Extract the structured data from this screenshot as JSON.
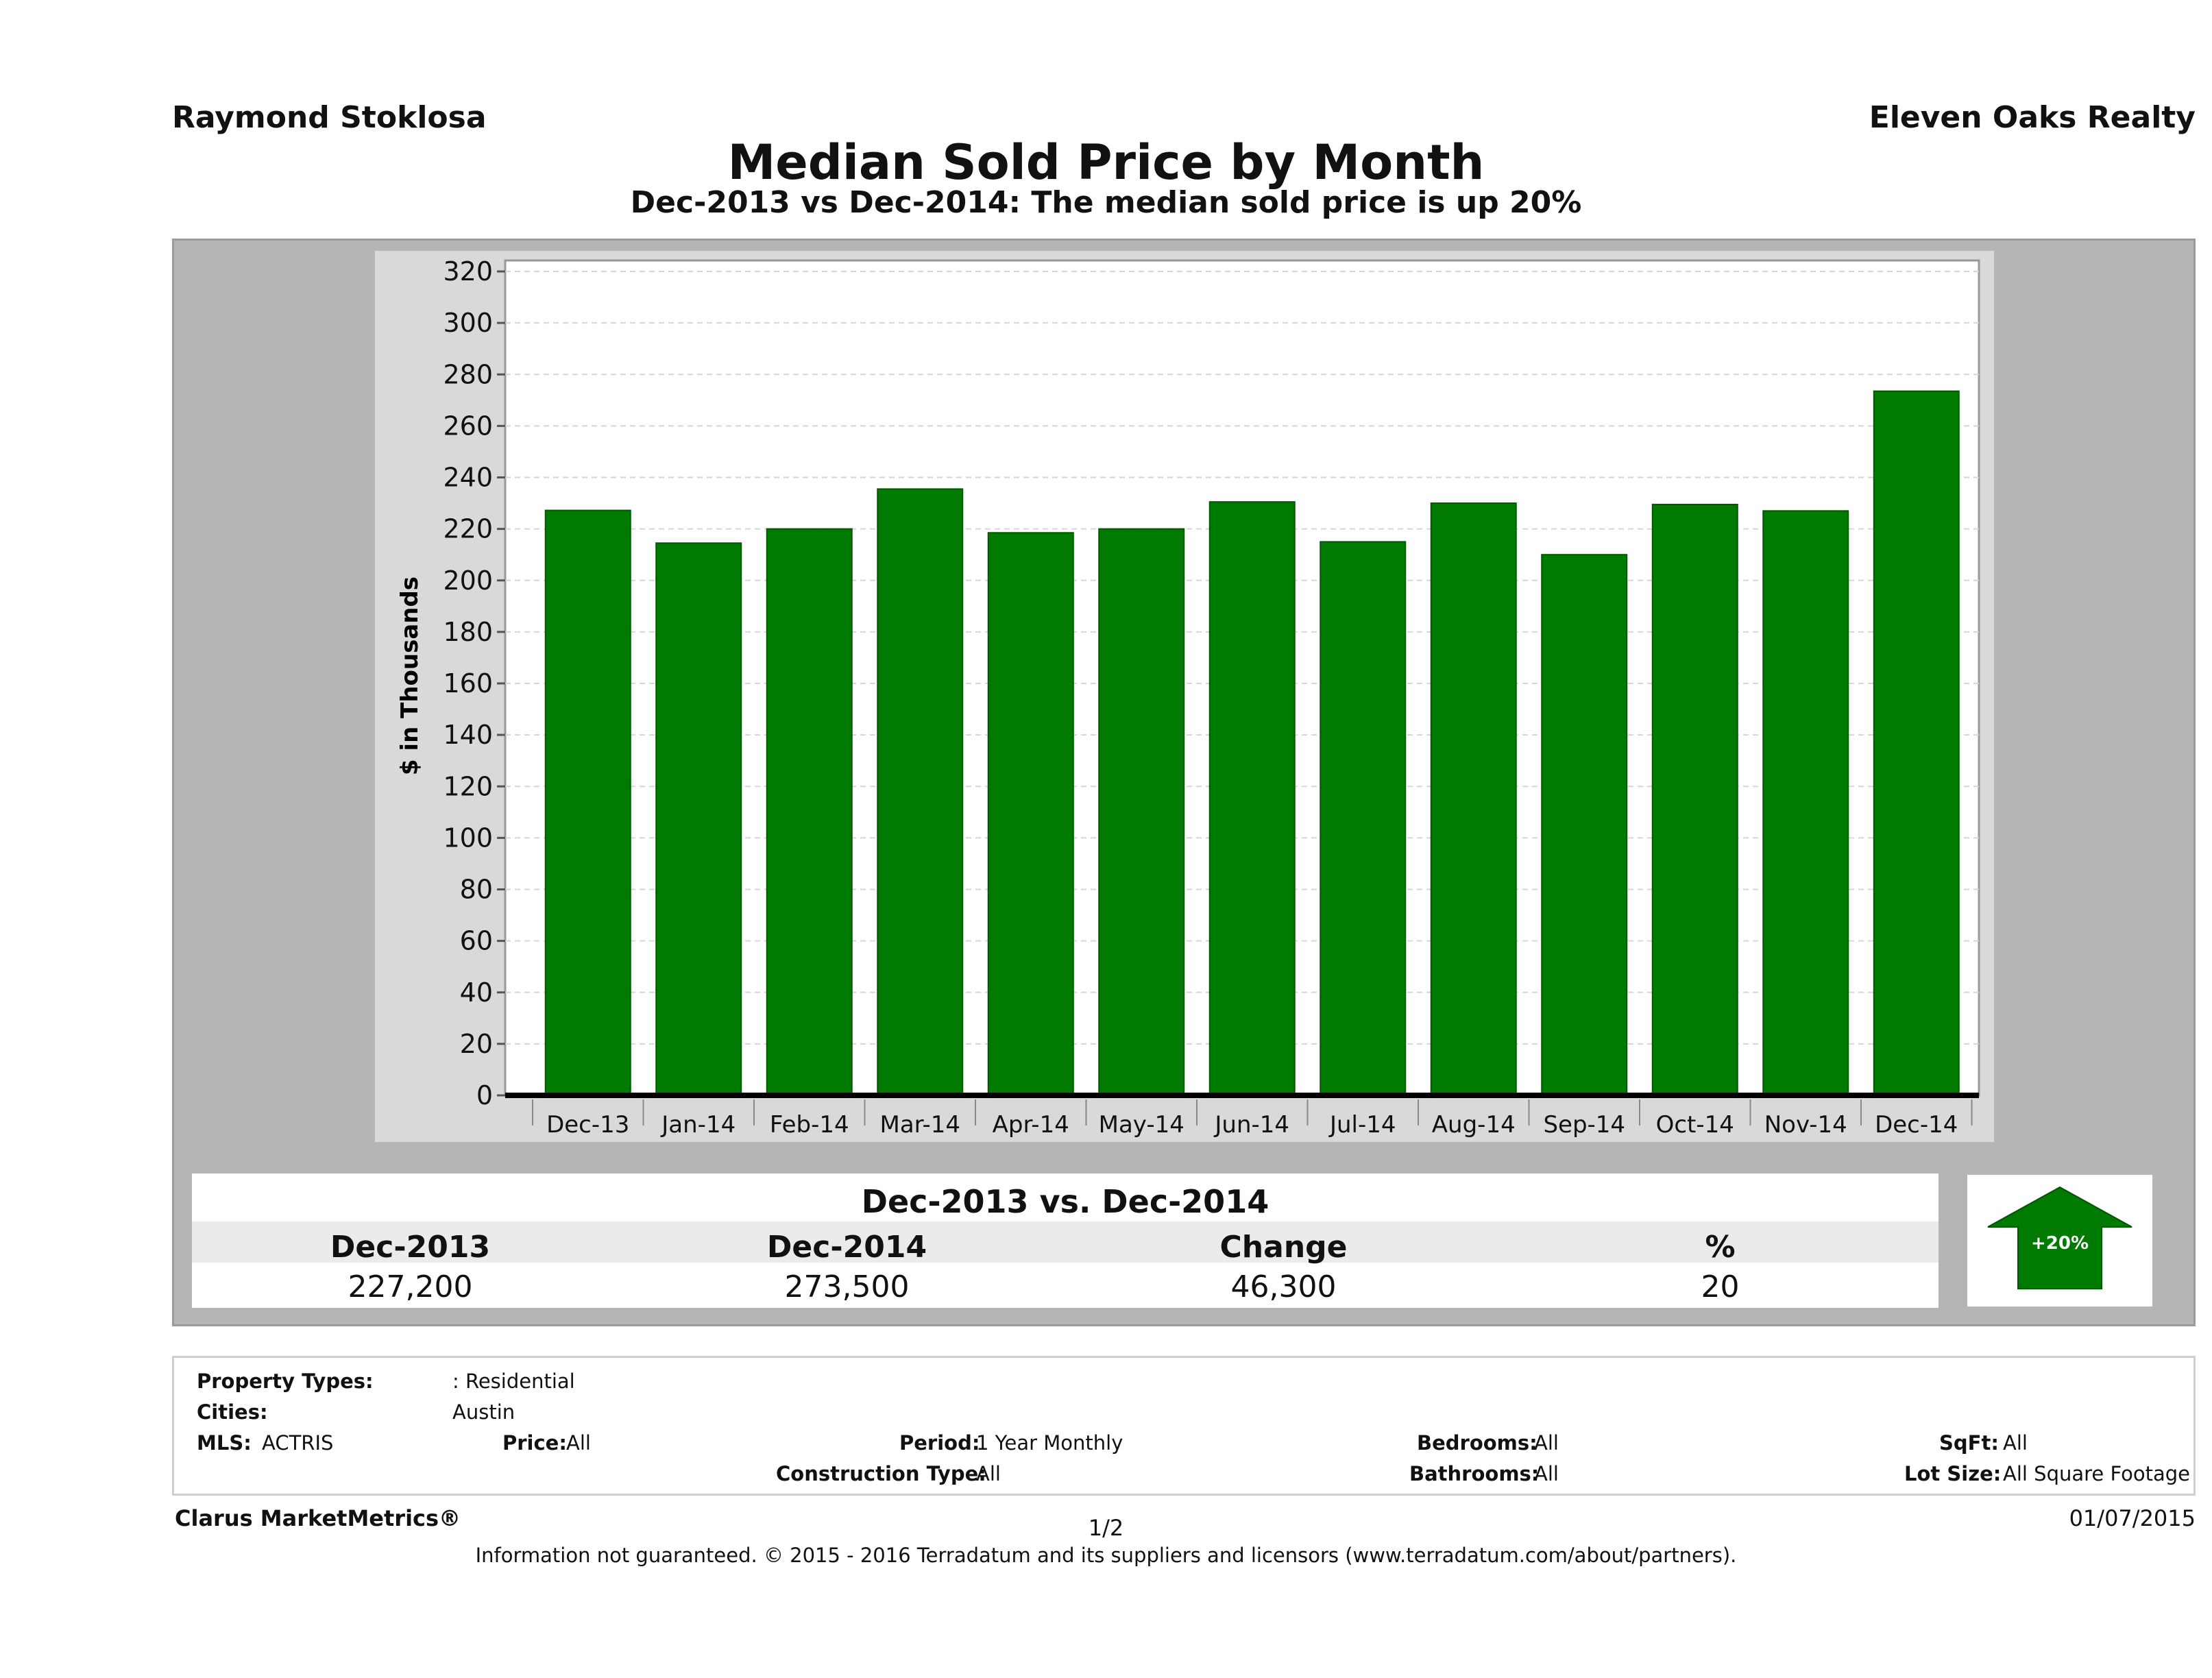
{
  "header": {
    "agent": "Raymond Stoklosa",
    "brokerage": "Eleven Oaks Realty",
    "title": "Median Sold Price by Month",
    "subtitle": "Dec-2013 vs Dec-2014: The median sold price is up 20%"
  },
  "chart_data": {
    "type": "bar",
    "title": "Median Sold Price by Month",
    "subtitle": "Dec-2013 vs Dec-2014: The median sold price is up 20%",
    "xlabel": "",
    "ylabel": "$ in Thousands",
    "ylim": [
      0,
      320
    ],
    "yticks": [
      0,
      20,
      40,
      60,
      80,
      100,
      120,
      140,
      160,
      180,
      200,
      220,
      240,
      260,
      280,
      300,
      320
    ],
    "grid": true,
    "categories": [
      "Dec-13",
      "Jan-14",
      "Feb-14",
      "Mar-14",
      "Apr-14",
      "May-14",
      "Jun-14",
      "Jul-14",
      "Aug-14",
      "Sep-14",
      "Oct-14",
      "Nov-14",
      "Dec-14"
    ],
    "values": [
      227.2,
      214.5,
      220,
      235.5,
      218.5,
      220,
      230.5,
      215,
      230,
      210,
      229.5,
      227,
      273.5
    ],
    "bar_color": "#007a00"
  },
  "comparison": {
    "title": "Dec-2013 vs. Dec-2014",
    "headers": [
      "Dec-2013",
      "Dec-2014",
      "Change",
      "%"
    ],
    "values": [
      "227,200",
      "273,500",
      "46,300",
      "20"
    ],
    "badge": "+20%",
    "badge_color": "#007a00"
  },
  "filters": {
    "property_types_label": "Property Types:",
    "property_types_value": ": Residential",
    "cities_label": "Cities:",
    "cities_value": "Austin",
    "mls_label": "MLS:",
    "mls_value": "ACTRIS",
    "price_label": "Price:",
    "price_value": "All",
    "period_label": "Period:",
    "period_value": "1 Year Monthly",
    "construction_label": "Construction Type:",
    "construction_value": "All",
    "bedrooms_label": "Bedrooms:",
    "bedrooms_value": "All",
    "bathrooms_label": "Bathrooms:",
    "bathrooms_value": "All",
    "sqft_label": "SqFt:",
    "sqft_value": "All",
    "lotsize_label": "Lot Size:",
    "lotsize_value": "All Square Footage"
  },
  "footer": {
    "brand": "Clarus MarketMetrics®",
    "page": "1/2",
    "date": "01/07/2015",
    "disclaimer": "Information not guaranteed. © 2015 - 2016 Terradatum and its suppliers and licensors (www.terradatum.com/about/partners)."
  }
}
